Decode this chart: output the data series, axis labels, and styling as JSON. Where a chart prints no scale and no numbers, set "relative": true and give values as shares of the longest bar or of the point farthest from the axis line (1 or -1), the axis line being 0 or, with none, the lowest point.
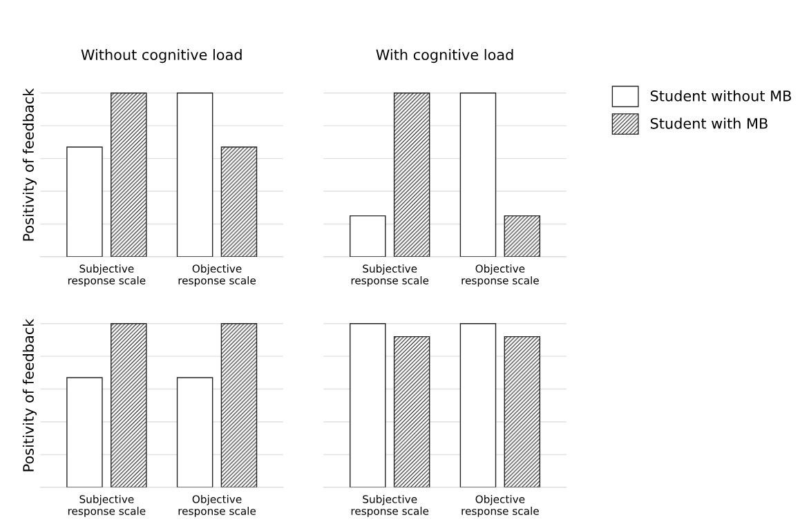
{
  "chart_data": [
    {
      "type": "bar",
      "title": "Without cognitive load",
      "ylabel": "Positivity of feedback",
      "relative": true,
      "grid": "y",
      "legend": "right",
      "categories": [
        "Subjective\nresponse scale",
        "Objective\nresponse scale"
      ],
      "series": [
        {
          "name": "Student without MB",
          "color": "#ffffff",
          "values": [
            0.67,
            1
          ]
        },
        {
          "name": "Student with MB",
          "color": "#222222",
          "values": [
            1,
            0.67
          ]
        }
      ]
    },
    {
      "type": "bar",
      "title": "With cognitive load",
      "relative": true,
      "grid": "y",
      "categories": [
        "Subjective\nresponse scale",
        "Objective\nresponse scale"
      ],
      "series": [
        {
          "color": "#ffffff",
          "values": [
            0.25,
            1
          ]
        },
        {
          "color": "#222222",
          "values": [
            1,
            0.25
          ]
        }
      ]
    },
    {
      "type": "bar",
      "ylabel": "Positivity of feedback",
      "relative": true,
      "grid": "y",
      "categories": [
        "Subjective\nresponse scale",
        "Objective\nresponse scale"
      ],
      "series": [
        {
          "color": "#ffffff",
          "values": [
            0.67,
            0.67
          ]
        },
        {
          "color": "#222222",
          "values": [
            1,
            1
          ]
        }
      ]
    },
    {
      "type": "bar",
      "relative": true,
      "grid": "y",
      "categories": [
        "Subjective\nresponse scale",
        "Objective\nresponse scale"
      ],
      "series": [
        {
          "color": "#ffffff",
          "values": [
            1,
            1
          ]
        },
        {
          "color": "#222222",
          "values": [
            0.92,
            0.92
          ]
        }
      ]
    }
  ]
}
